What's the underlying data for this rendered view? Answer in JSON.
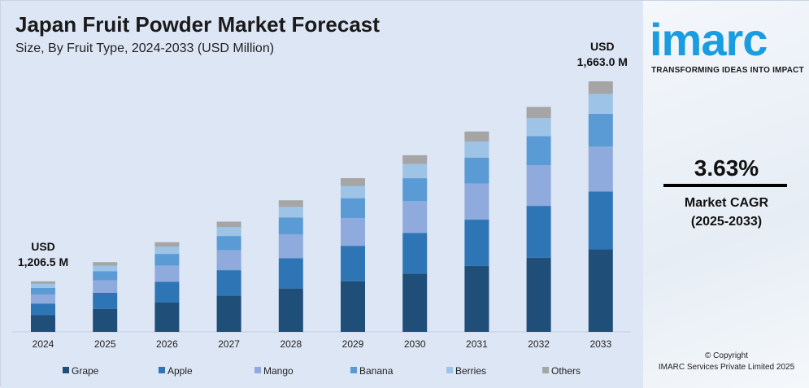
{
  "chart_data": {
    "type": "bar",
    "stacked": true,
    "title": "Japan Fruit Powder Market Forecast",
    "subtitle": "Size, By Fruit Type, 2024-2033 (USD Million)",
    "categories": [
      "2024",
      "2025",
      "2026",
      "2027",
      "2028",
      "2029",
      "2030",
      "2031",
      "2032",
      "2033"
    ],
    "totals": [
      1206.5,
      1250.3,
      1295.7,
      1342.7,
      1391.4,
      1441.9,
      1494.3,
      1548.5,
      1604.7,
      1663.0
    ],
    "series": [
      {
        "name": "Grape",
        "share": 0.33,
        "color": "#1f4e79"
      },
      {
        "name": "Apple",
        "share": 0.23,
        "color": "#2e75b6"
      },
      {
        "name": "Mango",
        "share": 0.18,
        "color": "#8faadc"
      },
      {
        "name": "Banana",
        "share": 0.13,
        "color": "#5b9bd5"
      },
      {
        "name": "Berries",
        "share": 0.08,
        "color": "#9dc3e6"
      },
      {
        "name": "Others",
        "share": 0.05,
        "color": "#a5a5a5"
      }
    ],
    "annotations": {
      "first_label": [
        "USD",
        "1,206.5 M"
      ],
      "last_label": [
        "USD",
        "1,663.0 M"
      ]
    },
    "ylim": [
      1091,
      1700
    ],
    "grid": false,
    "legend_position": "bottom"
  },
  "brand": {
    "logo": "imarc",
    "tagline": "TRANSFORMING IDEAS INTO IMPACT"
  },
  "cagr": {
    "value": "3.63%",
    "label": "Market CAGR",
    "period": "(2025-2033)"
  },
  "copyright": {
    "line1": "© Copyright",
    "line2": "IMARC Services Private Limited 2025"
  }
}
